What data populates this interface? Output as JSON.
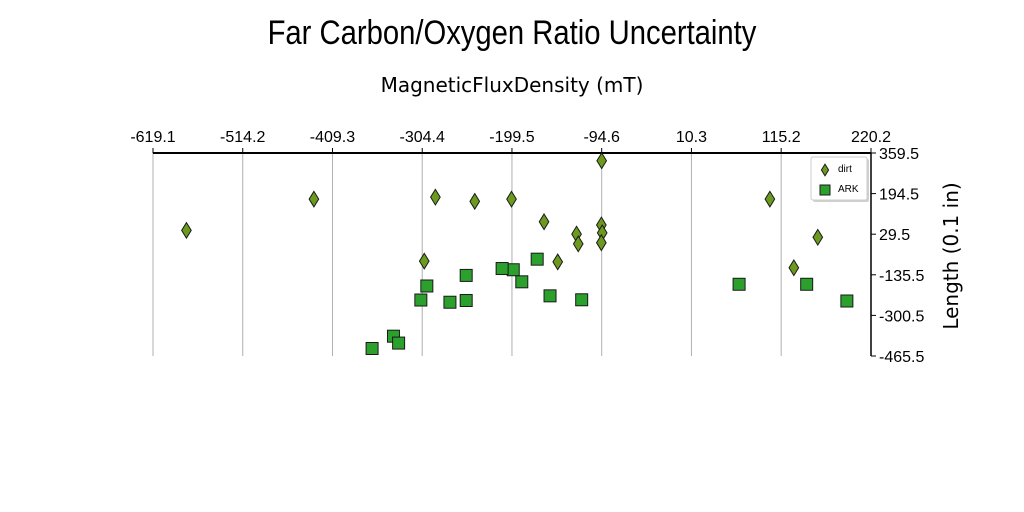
{
  "chart_data": {
    "type": "scatter",
    "title": "Far Carbon/Oxygen Ratio Uncertainty",
    "xlabel": "MagneticFluxDensity (mT)",
    "ylabel": "Length (0.1 in)",
    "xlim": [
      -619.1,
      220.2
    ],
    "ylim": [
      -465.5,
      359.5
    ],
    "x_ticks": [
      "-619.1",
      "-514.2",
      "-409.3",
      "-304.4",
      "-199.5",
      "-94.6",
      "10.3",
      "115.2",
      "220.2"
    ],
    "y_ticks": [
      "359.5",
      "194.5",
      "29.5",
      "-135.5",
      "-300.5",
      "-465.5"
    ],
    "x_axis_position": "top",
    "y_axis_position": "right",
    "grid": "vertical",
    "legend_position": "top-right",
    "series": [
      {
        "name": "dirt",
        "marker": "diamond",
        "color": "#6b9a1f",
        "points": [
          [
            -94.6,
            328
          ],
          [
            -580,
            45
          ],
          [
            -431,
            172
          ],
          [
            -289,
            180
          ],
          [
            -243,
            163
          ],
          [
            -200,
            172
          ],
          [
            -162,
            80
          ],
          [
            -124,
            30
          ],
          [
            -95,
            67
          ],
          [
            -94,
            35
          ],
          [
            -95,
            -5
          ],
          [
            -122,
            -10
          ],
          [
            -146,
            -83
          ],
          [
            -302,
            -80
          ],
          [
            102,
            172
          ],
          [
            158,
            17
          ],
          [
            130,
            -107
          ]
        ]
      },
      {
        "name": "ARK",
        "marker": "square",
        "color": "#2ca02c",
        "points": [
          [
            -170,
            -72
          ],
          [
            -198,
            -115
          ],
          [
            -211,
            -110
          ],
          [
            -253,
            -138
          ],
          [
            -188,
            -164
          ],
          [
            -299,
            -181
          ],
          [
            -306,
            -238
          ],
          [
            -272,
            -247
          ],
          [
            -253,
            -240
          ],
          [
            -155,
            -221
          ],
          [
            -118,
            -237
          ],
          [
            -338,
            -385
          ],
          [
            -332,
            -413
          ],
          [
            -363,
            -435
          ],
          [
            66,
            -174
          ],
          [
            145,
            -174
          ],
          [
            192,
            -242
          ]
        ]
      }
    ]
  }
}
